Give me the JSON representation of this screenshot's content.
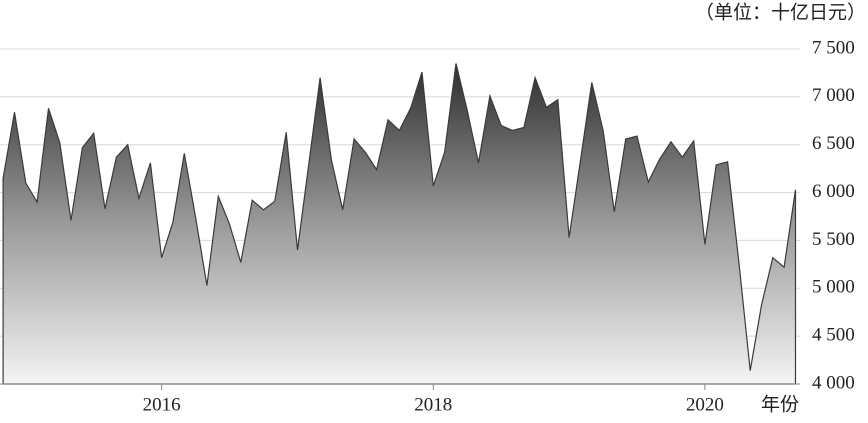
{
  "chart_data": {
    "type": "area",
    "unit_label": "（单位：十亿日元）",
    "xlabel": "年份",
    "x": [
      2014.833,
      2014.917,
      2015,
      2015.083,
      2015.167,
      2015.25,
      2015.333,
      2015.417,
      2015.5,
      2015.583,
      2015.667,
      2015.75,
      2015.833,
      2015.917,
      2016,
      2016.083,
      2016.167,
      2016.25,
      2016.333,
      2016.417,
      2016.5,
      2016.583,
      2016.667,
      2016.75,
      2016.833,
      2016.917,
      2017,
      2017.083,
      2017.167,
      2017.25,
      2017.333,
      2017.417,
      2017.5,
      2017.583,
      2017.667,
      2017.75,
      2017.833,
      2017.917,
      2018,
      2018.083,
      2018.167,
      2018.25,
      2018.333,
      2018.417,
      2018.5,
      2018.583,
      2018.667,
      2018.75,
      2018.833,
      2018.917,
      2019,
      2019.083,
      2019.167,
      2019.25,
      2019.333,
      2019.417,
      2019.5,
      2019.583,
      2019.667,
      2019.75,
      2019.833,
      2019.917,
      2020,
      2020.083,
      2020.167,
      2020.25,
      2020.333,
      2020.417,
      2020.5,
      2020.583,
      2020.667
    ],
    "values": [
      6150,
      6840,
      6100,
      5900,
      6880,
      6520,
      5710,
      6470,
      6620,
      5830,
      6370,
      6500,
      5940,
      6310,
      5320,
      5690,
      6410,
      5740,
      5030,
      5960,
      5670,
      5270,
      5920,
      5820,
      5910,
      6630,
      5400,
      6290,
      7200,
      6340,
      5820,
      6560,
      6420,
      6240,
      6760,
      6650,
      6880,
      7260,
      6070,
      6420,
      7350,
      6860,
      6310,
      7010,
      6700,
      6650,
      6680,
      7200,
      6890,
      6970,
      5530,
      6330,
      7150,
      6650,
      5800,
      6560,
      6590,
      6110,
      6350,
      6530,
      6370,
      6540,
      5460,
      6290,
      6320,
      5270,
      4140,
      4830,
      5320,
      5220,
      6030
    ],
    "color": "#3a3a3a",
    "xlim": [
      2014.81,
      2020.7
    ],
    "xticks": [
      2016,
      2018,
      2020
    ],
    "ylim": [
      4000,
      7500
    ],
    "yticks": [
      {
        "value": 4000,
        "label": "4 000"
      },
      {
        "value": 4500,
        "label": "4 500"
      },
      {
        "value": 5000,
        "label": "5 000"
      },
      {
        "value": 5500,
        "label": "5 500"
      },
      {
        "value": 6000,
        "label": "6 000"
      },
      {
        "value": 6500,
        "label": "6 500"
      },
      {
        "value": 7000,
        "label": "7 000"
      },
      {
        "value": 7500,
        "label": "7 500"
      }
    ],
    "grid": true
  }
}
